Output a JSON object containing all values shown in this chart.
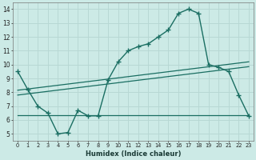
{
  "xlabel": "Humidex (Indice chaleur)",
  "xlim": [
    -0.5,
    23.5
  ],
  "ylim": [
    4.5,
    14.5
  ],
  "xticks": [
    0,
    1,
    2,
    3,
    4,
    5,
    6,
    7,
    8,
    9,
    10,
    11,
    12,
    13,
    14,
    15,
    16,
    17,
    18,
    19,
    20,
    21,
    22,
    23
  ],
  "yticks": [
    5,
    6,
    7,
    8,
    9,
    10,
    11,
    12,
    13,
    14
  ],
  "bg_color": "#cceae6",
  "grid_color": "#b8d8d4",
  "line_color": "#1a6e62",
  "main_line_x": [
    0,
    1,
    2,
    3,
    4,
    5,
    6,
    7,
    8,
    9,
    10,
    11,
    12,
    13,
    14,
    15,
    16,
    17,
    18,
    19,
    20,
    21,
    22,
    23
  ],
  "main_line_y": [
    9.5,
    8.2,
    7.0,
    6.5,
    5.0,
    5.1,
    6.7,
    6.3,
    6.3,
    8.9,
    10.2,
    11.0,
    11.3,
    11.5,
    12.0,
    12.5,
    13.7,
    14.0,
    13.7,
    10.0,
    9.8,
    9.5,
    7.8,
    6.3
  ],
  "upper_line_x": [
    0,
    23
  ],
  "upper_line_y": [
    8.15,
    10.2
  ],
  "upper2_line_x": [
    0,
    23
  ],
  "upper2_line_y": [
    7.8,
    9.85
  ],
  "lower_line_x": [
    0,
    20,
    23
  ],
  "lower_line_y": [
    6.35,
    6.35,
    6.35
  ]
}
